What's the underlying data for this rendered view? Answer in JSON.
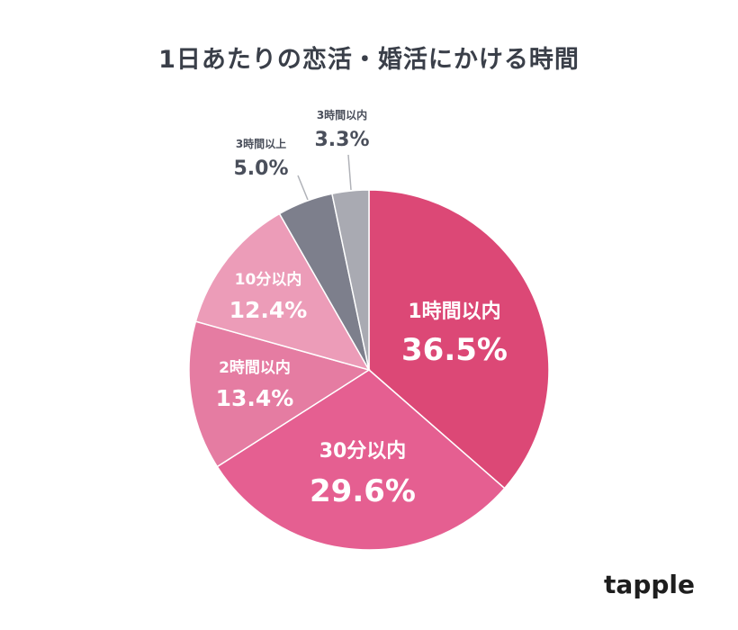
{
  "chart_data": {
    "type": "pie",
    "title": "1日あたりの恋活・婚活にかける時間",
    "slices": [
      {
        "label": "1時間以内",
        "value": 36.5,
        "display": "36.5%",
        "color": "#dc4876",
        "text_color": "#ffffff"
      },
      {
        "label": "30分以内",
        "value": 29.6,
        "display": "29.6%",
        "color": "#e55f91",
        "text_color": "#ffffff"
      },
      {
        "label": "2時間以内",
        "value": 13.4,
        "display": "13.4%",
        "color": "#e57ca2",
        "text_color": "#ffffff"
      },
      {
        "label": "10分以内",
        "value": 12.4,
        "display": "12.4%",
        "color": "#ec9cb8",
        "text_color": "#ffffff"
      },
      {
        "label": "3時間以上",
        "value": 5.0,
        "display": "5.0%",
        "color": "#7d7f8c",
        "text_color": "#4a4f5b"
      },
      {
        "label": "3時間以内",
        "value": 3.3,
        "display": "3.3%",
        "color": "#a9aab2",
        "text_color": "#4a4f5b"
      }
    ]
  },
  "brand": "tapple"
}
